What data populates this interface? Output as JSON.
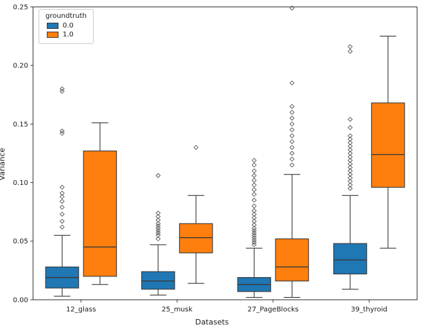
{
  "chart_data": {
    "type": "boxplot",
    "title": "",
    "xlabel": "Datasets",
    "ylabel": "Variance",
    "ylim": [
      0.0,
      0.25
    ],
    "yticks": [
      0.0,
      0.05,
      0.1,
      0.15,
      0.2,
      0.25
    ],
    "grid": false,
    "legend": {
      "title": "groundtruth",
      "position": "upper-left",
      "items": [
        {
          "label": "0.0",
          "color": "#1f77b4"
        },
        {
          "label": "1.0",
          "color": "#ff7f0e"
        }
      ]
    },
    "categories": [
      "12_glass",
      "25_musk",
      "27_PageBlocks",
      "39_thyroid"
    ],
    "series": [
      {
        "name": "0.0",
        "color": "#1f77b4",
        "boxes": [
          {
            "whislo": 0.003,
            "q1": 0.01,
            "med": 0.019,
            "q3": 0.028,
            "whishi": 0.055,
            "fliers": [
              0.062,
              0.067,
              0.073,
              0.079,
              0.084,
              0.088,
              0.091,
              0.096,
              0.142,
              0.144,
              0.178,
              0.18
            ]
          },
          {
            "whislo": 0.004,
            "q1": 0.009,
            "med": 0.016,
            "q3": 0.024,
            "whishi": 0.047,
            "fliers": [
              0.052,
              0.055,
              0.057,
              0.059,
              0.061,
              0.063,
              0.065,
              0.068,
              0.071,
              0.074,
              0.106
            ]
          },
          {
            "whislo": 0.002,
            "q1": 0.007,
            "med": 0.013,
            "q3": 0.019,
            "whishi": 0.044,
            "fliers": [
              0.047,
              0.049,
              0.051,
              0.053,
              0.055,
              0.057,
              0.059,
              0.061,
              0.064,
              0.067,
              0.07,
              0.073,
              0.076,
              0.08,
              0.085,
              0.09,
              0.094,
              0.098,
              0.102,
              0.106,
              0.11,
              0.115,
              0.119
            ]
          },
          {
            "whislo": 0.009,
            "q1": 0.022,
            "med": 0.034,
            "q3": 0.048,
            "whishi": 0.089,
            "fliers": [
              0.095,
              0.098,
              0.101,
              0.104,
              0.107,
              0.11,
              0.113,
              0.116,
              0.119,
              0.122,
              0.125,
              0.128,
              0.131,
              0.134,
              0.137,
              0.14,
              0.147,
              0.154,
              0.212,
              0.216
            ]
          }
        ]
      },
      {
        "name": "1.0",
        "color": "#ff7f0e",
        "boxes": [
          {
            "whislo": 0.013,
            "q1": 0.02,
            "med": 0.045,
            "q3": 0.127,
            "whishi": 0.151,
            "fliers": []
          },
          {
            "whislo": 0.014,
            "q1": 0.04,
            "med": 0.053,
            "q3": 0.065,
            "whishi": 0.089,
            "fliers": [
              0.13
            ]
          },
          {
            "whislo": 0.002,
            "q1": 0.016,
            "med": 0.028,
            "q3": 0.052,
            "whishi": 0.107,
            "fliers": [
              0.115,
              0.12,
              0.125,
              0.13,
              0.135,
              0.14,
              0.145,
              0.15,
              0.155,
              0.16,
              0.165,
              0.185,
              0.249
            ]
          },
          {
            "whislo": 0.044,
            "q1": 0.096,
            "med": 0.124,
            "q3": 0.168,
            "whishi": 0.225,
            "fliers": []
          }
        ]
      }
    ],
    "style": {
      "edge_color": "#3a3a3a",
      "median_color": "#3a3a3a",
      "flier_color": "#555555",
      "axis_color": "#2b2b2b",
      "tick_label_color": "#1a1a1a"
    }
  }
}
